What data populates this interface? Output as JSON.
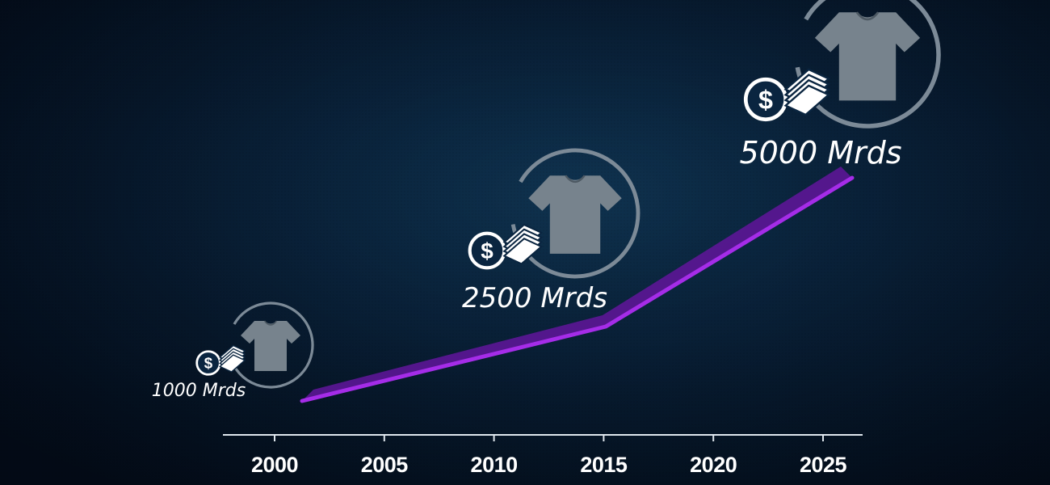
{
  "chart_data": {
    "type": "line",
    "title": "",
    "xlabel": "",
    "ylabel": "",
    "x_ticks": [
      "2000",
      "2005",
      "2010",
      "2015",
      "2020",
      "2025"
    ],
    "xlim": [
      1998,
      2027
    ],
    "ylim": [
      0,
      5500
    ],
    "grid": false,
    "series": [
      {
        "x": [
          2001.8,
          2015,
          2026.2
        ],
        "values": [
          250,
          1000,
          5000
        ]
      }
    ],
    "annotations": [
      {
        "label": "1000 Mrds",
        "x": 2000,
        "icon": "tshirt-money-icon"
      },
      {
        "label": "2500 Mrds",
        "x": 2012,
        "icon": "tshirt-money-icon"
      },
      {
        "label": "5000 Mrds",
        "x": 2025,
        "icon": "tshirt-money-icon"
      }
    ],
    "colors": {
      "line": "#a52ce8",
      "line_shadow": "#5c1696",
      "axis": "#dfe7ee",
      "text": "#ffffff",
      "icon_fill": "#77838d",
      "ring": "#7c8a97"
    }
  }
}
